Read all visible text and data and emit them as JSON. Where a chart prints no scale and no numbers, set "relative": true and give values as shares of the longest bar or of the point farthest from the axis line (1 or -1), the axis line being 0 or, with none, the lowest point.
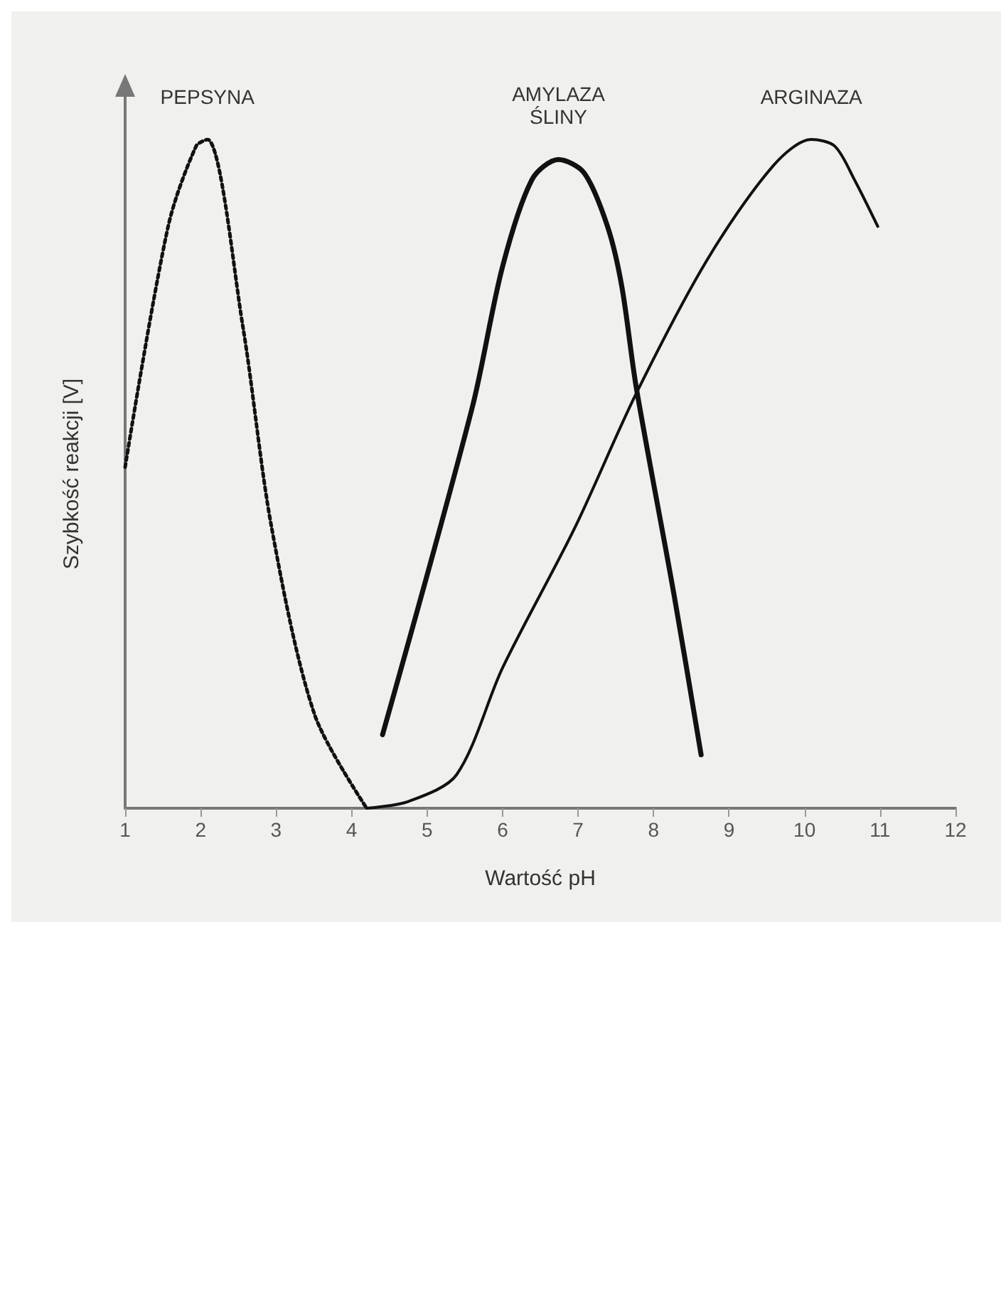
{
  "chart_data": {
    "type": "line",
    "relative": true,
    "xlabel": "Wartość pH",
    "ylabel": "Szybkość reakcji [V]",
    "xlim": [
      1,
      12
    ],
    "xticks": [
      1,
      2,
      3,
      4,
      5,
      6,
      7,
      8,
      9,
      10,
      11,
      12
    ],
    "grid": false,
    "legend": false,
    "marker": "none",
    "series": [
      {
        "name": "PEPSYNA",
        "color": "#111111",
        "line_style": "dotted",
        "x": [
          1,
          1.57,
          1.94,
          2.09,
          2.56,
          2.94,
          3.51,
          4.2
        ],
        "values": [
          0.51,
          0.87,
          0.99,
          1.0,
          0.72,
          0.42,
          0.14,
          0
        ]
      },
      {
        "name": "AMYLAZA ŚLINY",
        "color": "#111111",
        "line_style": "solid",
        "x": [
          4.41,
          5.6,
          6.0,
          6.39,
          6.74,
          7.08,
          7.39,
          7.58,
          7.77,
          8.27,
          8.63
        ],
        "values": [
          0.11,
          0.6,
          0.81,
          0.94,
          0.97,
          0.95,
          0.87,
          0.78,
          0.63,
          0.32,
          0.08
        ]
      },
      {
        "name": "ARGINAZA",
        "color": "#111111",
        "line_style": "solid",
        "x": [
          4.2,
          4.75,
          5.39,
          6.0,
          6.96,
          7.77,
          8.71,
          9.58,
          10.09,
          10.4,
          10.66,
          10.97
        ],
        "values": [
          0,
          0.01,
          0.05,
          0.21,
          0.42,
          0.62,
          0.82,
          0.96,
          1.0,
          0.99,
          0.94,
          0.87
        ]
      }
    ]
  }
}
